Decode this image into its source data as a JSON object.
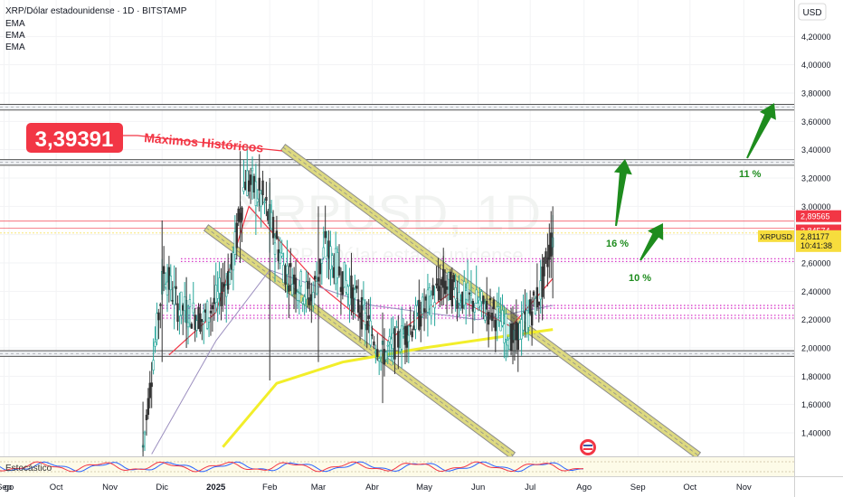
{
  "header": {
    "title": "XRP/Dólar estadounidense · 1D · BITSTAMP",
    "indicators": [
      "EMA",
      "EMA",
      "EMA"
    ]
  },
  "price_axis": {
    "currency": "USD",
    "ticks": [
      "4,20000",
      "4,00000",
      "3,80000",
      "3,60000",
      "3,40000",
      "3,20000",
      "3,00000",
      "2,80000",
      "2,60000",
      "2,40000",
      "2,20000",
      "2,00000",
      "1,80000",
      "1,60000",
      "1,40000"
    ],
    "tags": [
      {
        "label": "2,89565",
        "value": 2.89565,
        "color": "#f23645"
      },
      {
        "label": "2,84574",
        "value": 2.84574,
        "color": "#f23645"
      },
      {
        "label": "2,81177",
        "value": 2.81177,
        "color": "#f7dd3d",
        "symbol": "XRPUSD",
        "countdown": "10:41:38"
      }
    ]
  },
  "time_axis": {
    "ticks": [
      "go",
      "Sep",
      "Oct",
      "Nov",
      "Dic",
      "2025",
      "Feb",
      "Mar",
      "Abr",
      "May",
      "Jun",
      "Jul",
      "Ago",
      "Sep",
      "Oct",
      "Nov"
    ]
  },
  "watermark": {
    "symbol": "XRPUSD, 1D",
    "name": "XRP / Dólar estadounidense"
  },
  "annotations": {
    "ath_value": "3,39391",
    "ath_label": "Máximos Históricos",
    "targets": [
      "16 %",
      "10 %",
      "11 %"
    ]
  },
  "oscillator": {
    "label": "Estocástico"
  },
  "colors": {
    "up": "#26a69a",
    "down": "#333333",
    "ema_fast": "#f23645",
    "ema_mid": "#9c8fbf",
    "ema_slow": "#f2ee2a",
    "channel": "#9e9e9e",
    "level": "#555555",
    "support_dotted": "#d83ac8",
    "arrow": "#1e8c1e",
    "ath_box": "#f23645"
  },
  "chart_data": {
    "type": "candlestick",
    "title": "XRP/Dólar estadounidense · 1D · BITSTAMP",
    "y_unit": "USD",
    "ylim": [
      1.22,
      4.3
    ],
    "x_range": [
      "2024-08-01",
      "2025-11-30"
    ],
    "series": [
      {
        "name": "XRPUSD",
        "ohlc_monthly": [
          {
            "date": "2024-11-20",
            "open": 1.1,
            "high": 1.62,
            "low": 1.05,
            "close": 1.45
          },
          {
            "date": "2024-12-01",
            "open": 1.9,
            "high": 2.9,
            "low": 1.9,
            "close": 2.6
          },
          {
            "date": "2024-12-15",
            "open": 2.4,
            "high": 2.5,
            "low": 2.0,
            "close": 2.1
          },
          {
            "date": "2025-01-15",
            "open": 2.7,
            "high": 3.39,
            "low": 2.6,
            "close": 3.15
          },
          {
            "date": "2025-02-01",
            "open": 3.1,
            "high": 3.2,
            "low": 1.77,
            "close": 2.7
          },
          {
            "date": "2025-03-01",
            "open": 2.5,
            "high": 3.0,
            "low": 1.9,
            "close": 2.25
          },
          {
            "date": "2025-04-07",
            "open": 2.1,
            "high": 2.25,
            "low": 1.61,
            "close": 2.0
          },
          {
            "date": "2025-05-12",
            "open": 2.4,
            "high": 2.65,
            "low": 2.3,
            "close": 2.45
          },
          {
            "date": "2025-06-22",
            "open": 2.1,
            "high": 2.25,
            "low": 1.91,
            "close": 2.2
          },
          {
            "date": "2025-07-14",
            "open": 2.4,
            "high": 3.0,
            "low": 2.35,
            "close": 2.81
          }
        ]
      },
      {
        "name": "EMA",
        "values": [
          {
            "date": "2024-12-05",
            "value": 1.95
          },
          {
            "date": "2025-01-01",
            "value": 2.25
          },
          {
            "date": "2025-01-20",
            "value": 3.0
          },
          {
            "date": "2025-03-01",
            "value": 2.45
          },
          {
            "date": "2025-04-10",
            "value": 2.05
          },
          {
            "date": "2025-05-15",
            "value": 2.38
          },
          {
            "date": "2025-06-20",
            "value": 2.15
          },
          {
            "date": "2025-07-14",
            "value": 2.49
          }
        ]
      },
      {
        "name": "EMA",
        "values": [
          {
            "date": "2024-11-25",
            "value": 1.25
          },
          {
            "date": "2025-01-01",
            "value": 2.05
          },
          {
            "date": "2025-02-01",
            "value": 2.55
          },
          {
            "date": "2025-04-01",
            "value": 2.3
          },
          {
            "date": "2025-06-01",
            "value": 2.2
          },
          {
            "date": "2025-07-14",
            "value": 2.3
          }
        ]
      },
      {
        "name": "EMA",
        "values": [
          {
            "date": "2025-01-05",
            "value": 1.3
          },
          {
            "date": "2025-02-05",
            "value": 1.75
          },
          {
            "date": "2025-03-15",
            "value": 1.9
          },
          {
            "date": "2025-05-01",
            "value": 2.0
          },
          {
            "date": "2025-06-15",
            "value": 2.08
          },
          {
            "date": "2025-07-14",
            "value": 2.13
          }
        ]
      }
    ],
    "horizontal_levels": [
      3.72,
      3.68,
      3.33,
      3.29,
      1.98,
      1.94
    ],
    "dotted_support_levels": [
      2.62,
      2.29,
      2.22
    ],
    "ath": 3.39391
  }
}
